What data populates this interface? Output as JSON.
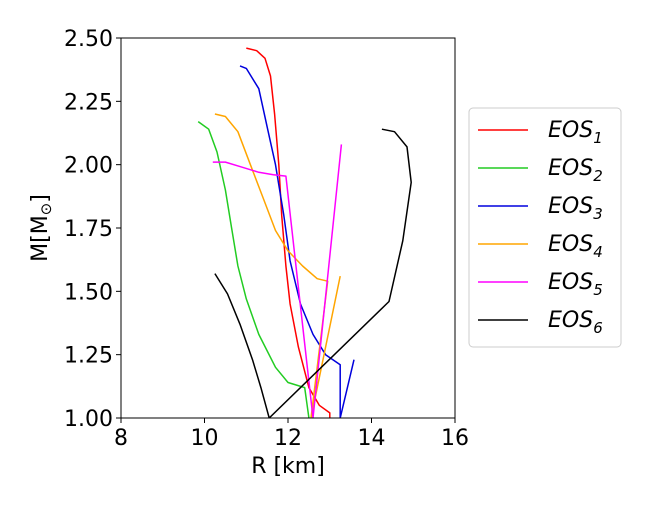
{
  "chart_data": {
    "type": "line",
    "xlabel": "R [km]",
    "ylabel": "M[M",
    "ylabel_symbol": "⊙",
    "ylabel_close": "]",
    "xlim": [
      8,
      16
    ],
    "ylim": [
      1.0,
      2.5
    ],
    "xticks": [
      8,
      10,
      12,
      14,
      16
    ],
    "xtick_labels": [
      "8",
      "10",
      "12",
      "14",
      "16"
    ],
    "yticks": [
      1.0,
      1.25,
      1.5,
      1.75,
      2.0,
      2.25,
      2.5
    ],
    "ytick_labels": [
      "1.00",
      "1.25",
      "1.50",
      "1.75",
      "2.00",
      "2.25",
      "2.50"
    ],
    "grid": false,
    "legend_position": "right",
    "series": [
      {
        "name": "EOS",
        "sub": "1",
        "color": "#ff0000",
        "points": [
          [
            11.0,
            2.46
          ],
          [
            11.25,
            2.45
          ],
          [
            11.45,
            2.42
          ],
          [
            11.58,
            2.35
          ],
          [
            11.68,
            2.2
          ],
          [
            11.78,
            2.0
          ],
          [
            11.85,
            1.8
          ],
          [
            11.95,
            1.6
          ],
          [
            12.05,
            1.45
          ],
          [
            12.25,
            1.28
          ],
          [
            12.5,
            1.12
          ],
          [
            12.75,
            1.05
          ],
          [
            13.0,
            1.02
          ],
          [
            13.0,
            1.0
          ]
        ]
      },
      {
        "name": "EOS",
        "sub": "2",
        "color": "#22cc22",
        "points": [
          [
            9.85,
            2.17
          ],
          [
            10.1,
            2.14
          ],
          [
            10.3,
            2.05
          ],
          [
            10.5,
            1.9
          ],
          [
            10.65,
            1.75
          ],
          [
            10.8,
            1.6
          ],
          [
            11.0,
            1.47
          ],
          [
            11.3,
            1.33
          ],
          [
            11.7,
            1.2
          ],
          [
            12.0,
            1.14
          ],
          [
            12.4,
            1.12
          ],
          [
            12.45,
            1.06
          ],
          [
            12.5,
            1.0
          ]
        ]
      },
      {
        "name": "EOS",
        "sub": "3",
        "color": "#0000dd",
        "points": [
          [
            10.85,
            2.39
          ],
          [
            11.0,
            2.38
          ],
          [
            11.3,
            2.3
          ],
          [
            11.5,
            2.15
          ],
          [
            11.7,
            2.0
          ],
          [
            11.9,
            1.8
          ],
          [
            12.05,
            1.62
          ],
          [
            12.3,
            1.45
          ],
          [
            12.6,
            1.33
          ],
          [
            12.9,
            1.25
          ],
          [
            13.25,
            1.21
          ],
          [
            13.25,
            1.0
          ],
          [
            13.58,
            1.23
          ]
        ]
      },
      {
        "name": "EOS",
        "sub": "4",
        "color": "#ffa500",
        "points": [
          [
            10.25,
            2.2
          ],
          [
            10.5,
            2.19
          ],
          [
            10.8,
            2.13
          ],
          [
            11.1,
            2.0
          ],
          [
            11.4,
            1.87
          ],
          [
            11.7,
            1.74
          ],
          [
            12.0,
            1.66
          ],
          [
            12.35,
            1.6
          ],
          [
            12.7,
            1.55
          ],
          [
            12.95,
            1.54
          ],
          [
            12.55,
            1.0
          ],
          [
            13.25,
            1.56
          ]
        ]
      },
      {
        "name": "EOS",
        "sub": "5",
        "color": "#ff00ff",
        "points": [
          [
            10.2,
            2.01
          ],
          [
            10.5,
            2.01
          ],
          [
            10.9,
            1.99
          ],
          [
            11.3,
            1.97
          ],
          [
            11.65,
            1.96
          ],
          [
            11.95,
            1.955
          ],
          [
            12.6,
            1.0
          ],
          [
            13.28,
            2.08
          ]
        ]
      },
      {
        "name": "EOS",
        "sub": "6",
        "color": "#000000",
        "points": [
          [
            10.25,
            1.57
          ],
          [
            10.55,
            1.49
          ],
          [
            10.85,
            1.37
          ],
          [
            11.15,
            1.23
          ],
          [
            11.35,
            1.12
          ],
          [
            11.55,
            1.0
          ],
          [
            14.42,
            1.46
          ],
          [
            14.75,
            1.7
          ],
          [
            14.95,
            1.93
          ],
          [
            14.85,
            2.07
          ],
          [
            14.55,
            2.13
          ],
          [
            14.25,
            2.14
          ]
        ]
      }
    ]
  }
}
